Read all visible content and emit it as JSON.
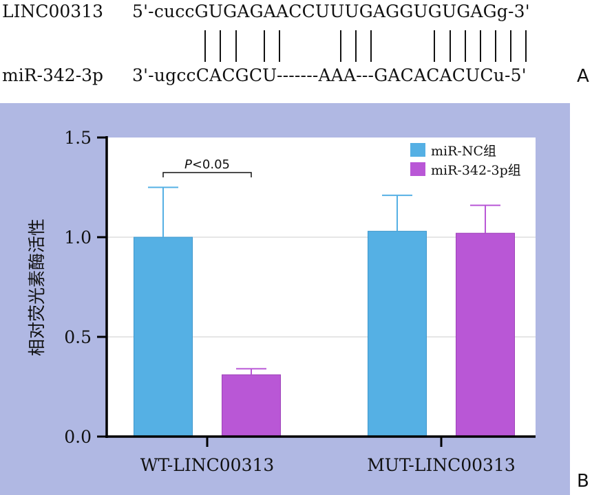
{
  "alignment": {
    "top_name": "LINC00313",
    "top_seq": "5'-cuccGUGAGAACCUUUGAGGUGUGAGg-3'",
    "bottom_name": "miR-342-3p",
    "bottom_seq": "3'-ugccCACGCU-------AAA---GACACACUCu-5'",
    "panel_label": "A"
  },
  "chart_data": {
    "type": "bar",
    "panel_label": "B",
    "categories": [
      "WT-LINC00313",
      "MUT-LINC00313"
    ],
    "series": [
      {
        "name": "miR-NC组",
        "color": "#55b0e4",
        "values": [
          1.0,
          1.03
        ],
        "errors": [
          0.25,
          0.18
        ]
      },
      {
        "name": "miR-342-3p组",
        "color": "#b957d6",
        "values": [
          0.31,
          1.02
        ],
        "errors": [
          0.03,
          0.14
        ]
      }
    ],
    "ylabel": "相对荧光素酶活性",
    "ylim": [
      0,
      1.5
    ],
    "yticks": [
      0.0,
      0.5,
      1.0,
      1.5
    ],
    "ytick_labels": [
      "0.0",
      "0.5",
      "1.0",
      "1.5"
    ],
    "grid": true,
    "legend": "top-right",
    "annotation": {
      "text_italic": "P",
      "text_rest": "<0.05"
    }
  }
}
